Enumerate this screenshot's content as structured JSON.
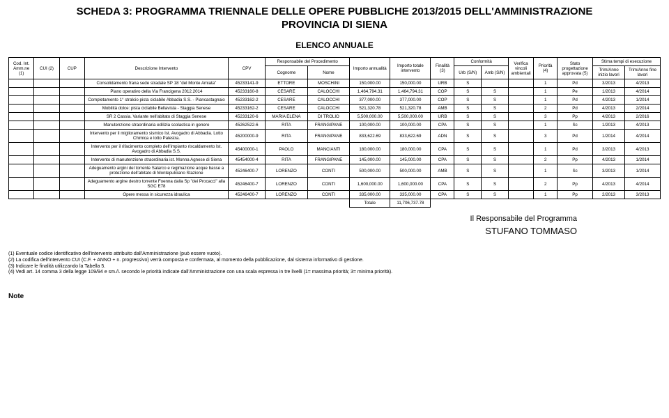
{
  "title_main": "SCHEDA 3: PROGRAMMA TRIENNALE DELLE OPERE PUBBLICHE 2013/2015 DELL'AMMINISTRAZIONE",
  "title_sub": "PROVINCIA DI SIENA",
  "section_head": "ELENCO ANNUALE",
  "col": {
    "cod": "Cod. Int. Amm.ne (1)",
    "cui": "CUI (2)",
    "cup": "CUP",
    "descr": "Descrizione Intervento",
    "cpv": "CPV",
    "resp": "Responsabile del Procedimento",
    "cogn": "Cognome",
    "nome": "Nome",
    "imp_ann": "Importo annualità",
    "imp_tot": "Importo totale intervento",
    "fin": "Finalità (3)",
    "conf": "Conformità",
    "urb": "Urb (S/N)",
    "amb": "Amb (S/N)",
    "verif": "Verifica vincoli ambientali",
    "prio": "Priorità (4)",
    "stato": "Stato progettazione approvata (5)",
    "stima": "Stima tempi di esecuzione",
    "trim_a": "Trim/Anno inizio lavori",
    "trim_f": "Trim/Anno fine lavori"
  },
  "rows": [
    {
      "descr": "Consolidamento frana sede stradale SP 18 \"del Monte Amiata\"",
      "cpv": "45233141-9",
      "cogn": "ETTORE",
      "nome": "MOSCHINI",
      "imp_a": "150,000.00",
      "imp_t": "150,000.00",
      "fin": "URB",
      "urb": "S",
      "amb": "",
      "prio": "1",
      "stato": "Pd",
      "ti": "3/2013",
      "tf": "4/2013"
    },
    {
      "descr": "Piano operativo della Via Francigena 2012.2014",
      "cpv": "45233160-8",
      "cogn": "CESARE",
      "nome": "CALOCCHI",
      "imp_a": "1,464,794.31",
      "imp_t": "1,464,794.31",
      "fin": "COP",
      "urb": "S",
      "amb": "S",
      "prio": "1",
      "stato": "Pe",
      "ti": "1/2013",
      "tf": "4/2014"
    },
    {
      "descr": "Completamento 1° stralcio pista ciclabile Abbadia S.S. - Piancastagnaio",
      "cpv": "45233162-2",
      "cogn": "CESARE",
      "nome": "CALOCCHI",
      "imp_a": "377,000.00",
      "imp_t": "377,000.00",
      "fin": "COP",
      "urb": "S",
      "amb": "S",
      "prio": "1",
      "stato": "Pd",
      "ti": "4/2013",
      "tf": "1/2014"
    },
    {
      "descr": "Mobilità dolce: pista ciclabile Bellavista - Staggia Senese",
      "cpv": "45233162-2",
      "cogn": "CESARE",
      "nome": "CALOCCHI",
      "imp_a": "521,320.78",
      "imp_t": "521,320.78",
      "fin": "AMB",
      "urb": "S",
      "amb": "S",
      "prio": "2",
      "stato": "Pd",
      "ti": "4/2013",
      "tf": "2/2014"
    },
    {
      "descr": "SR 2 Cassia. Variante nell'abitato di Staggia Senese",
      "cpv": "45233120-6",
      "cogn": "MARIA ELENA",
      "nome": "DI TROLIO",
      "imp_a": "5,500,000.00",
      "imp_t": "5,500,000.00",
      "fin": "URB",
      "urb": "S",
      "amb": "S",
      "prio": "3",
      "stato": "Pp",
      "ti": "4/2013",
      "tf": "2/2016"
    },
    {
      "descr": "Manutenzione straordinaria edilizia scolastica in genere",
      "cpv": "45262522-6",
      "cogn": "RITA",
      "nome": "FRANGIPANE",
      "imp_a": "100,000.00",
      "imp_t": "100,000.00",
      "fin": "CPA",
      "urb": "S",
      "amb": "S",
      "prio": "1",
      "stato": "Sc",
      "ti": "1/2013",
      "tf": "4/2013"
    },
    {
      "descr": "Intervento per il miglioramento sismico Ist. Avogadro di Abbadia. Lotto Chimica e lotto Palestra.",
      "cpv": "45200000-9",
      "cogn": "RITA",
      "nome": "FRANGIPANE",
      "imp_a": "833,622.69",
      "imp_t": "833,622.69",
      "fin": "ADN",
      "urb": "S",
      "amb": "S",
      "prio": "3",
      "stato": "Pd",
      "ti": "1/2014",
      "tf": "4/2014"
    },
    {
      "descr": "Intervento per il rifacimento completo dell'impianto riscaldamento Ist. Avogadro di Abbadia S.S.",
      "cpv": "45400000-1",
      "cogn": "PAOLO",
      "nome": "MANCIANTI",
      "imp_a": "180,000.00",
      "imp_t": "180,000.00",
      "fin": "CPA",
      "urb": "S",
      "amb": "S",
      "prio": "1",
      "stato": "Pd",
      "ti": "3/2013",
      "tf": "4/2013"
    },
    {
      "descr": "Intervento di manutenzione straordinaria ist. Monna Agnese di Siena",
      "cpv": "45454000-4",
      "cogn": "RITA",
      "nome": "FRANGIPANE",
      "imp_a": "145,000.00",
      "imp_t": "145,000.00",
      "fin": "CPA",
      "urb": "S",
      "amb": "S",
      "prio": "2",
      "stato": "Pp",
      "ti": "4/2013",
      "tf": "1/2014"
    },
    {
      "descr": "Adeguamento argini del torrente Salarco e regimazione acque basse a protezione dell'abitato di Montepulciano Stazione",
      "cpv": "45246400-7",
      "cogn": "LORENZO",
      "nome": "CONTI",
      "imp_a": "500,000.00",
      "imp_t": "500,000.00",
      "fin": "AMB",
      "urb": "S",
      "amb": "S",
      "prio": "1",
      "stato": "Sc",
      "ti": "3/2013",
      "tf": "1/2014"
    },
    {
      "descr": "Adeguamento argine destro torrente Foenna dalla Sp \"dei Procacci\" alla SGC E78",
      "cpv": "45246400-7",
      "cogn": "LORENZO",
      "nome": "CONTI",
      "imp_a": "1,600,000.00",
      "imp_t": "1,600,000.00",
      "fin": "CPA",
      "urb": "S",
      "amb": "S",
      "prio": "2",
      "stato": "Pp",
      "ti": "4/2013",
      "tf": "4/2014"
    },
    {
      "descr": "Opere messa in sicurezza idraulica",
      "cpv": "45246400-7",
      "cogn": "LORENZO",
      "nome": "CONTI",
      "imp_a": "335,000.00",
      "imp_t": "335,000.00",
      "fin": "CPA",
      "urb": "S",
      "amb": "S",
      "prio": "1",
      "stato": "Pp",
      "ti": "2/2013",
      "tf": "3/2013"
    }
  ],
  "total_label": "Totale",
  "total_value": "11,706,737.78",
  "resp_line1": "Il Responsabile del Programma",
  "resp_line2": "STUFANO TOMMASO",
  "fn1": "(1) Eventuale codice identificativo dell'intervento attribuito dall'Amministrazione (può essere vuoto).",
  "fn2": "(2) La codifica dell'intervento CUI (C.F. + ANNO + n. progressivo) verrà composta e confermata, al momento della pubblicazione, dal sistema informativo di gestione.",
  "fn3": "(3) Indicare le finalità utilizzando la Tabella 5.",
  "fn4": "(4) Vedi art. 14 comma 3 della legge 109/94 e sm./i. secondo le priorità indicate dall'Amministrazione con una scala espressa in tre livelli (1= massima priorità; 3= minima priorità).",
  "note": "Note"
}
